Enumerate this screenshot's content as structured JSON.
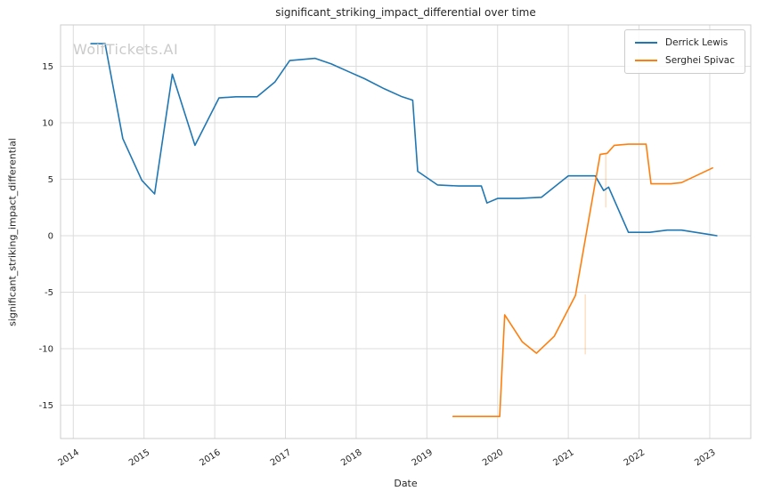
{
  "watermark": "WolfTickets.AI",
  "chart_data": {
    "type": "line",
    "title": "significant_striking_impact_differential over time",
    "xlabel": "Date",
    "ylabel": "significant_striking_impact_differential",
    "grid": true,
    "legend_position": "upper right",
    "xlim": [
      2013.82,
      2023.58
    ],
    "ylim": [
      -17.95,
      18.66
    ],
    "x_ticks": [
      2014,
      2015,
      2016,
      2017,
      2018,
      2019,
      2020,
      2021,
      2022,
      2023
    ],
    "y_ticks": [
      -15,
      -10,
      -5,
      0,
      5,
      10,
      15
    ],
    "colors": {
      "grid": "#dcdcdc",
      "frame": "#cccccc",
      "text": "#262626",
      "watermark": "#cbcbcb"
    },
    "series": [
      {
        "name": "Derrick Lewis",
        "color": "#1f77b4",
        "x": [
          2014.25,
          2014.45,
          2014.7,
          2014.97,
          2015.15,
          2015.4,
          2015.72,
          2016.06,
          2016.3,
          2016.6,
          2016.85,
          2017.06,
          2017.42,
          2017.65,
          2017.9,
          2018.12,
          2018.4,
          2018.65,
          2018.8,
          2018.87,
          2019.15,
          2019.45,
          2019.77,
          2019.85,
          2020.0,
          2020.3,
          2020.62,
          2021.0,
          2021.2,
          2021.38,
          2021.5,
          2021.57,
          2021.85,
          2022.15,
          2022.4,
          2022.6,
          2023.0,
          2023.1
        ],
        "y": [
          17.0,
          17.0,
          8.6,
          4.9,
          3.7,
          14.3,
          8.0,
          12.2,
          12.3,
          12.3,
          13.6,
          15.5,
          15.7,
          15.2,
          14.5,
          13.9,
          13.0,
          12.3,
          12.0,
          5.7,
          4.5,
          4.4,
          4.4,
          2.9,
          3.3,
          3.3,
          3.4,
          5.3,
          5.3,
          5.3,
          4.0,
          4.3,
          0.3,
          0.3,
          0.5,
          0.5,
          0.1,
          0.0
        ]
      },
      {
        "name": "Serghei Spivac",
        "color": "#ff7f0e",
        "x": [
          2019.37,
          2019.7,
          2020.03,
          2020.1,
          2020.35,
          2020.55,
          2020.8,
          2021.1,
          2021.45,
          2021.55,
          2021.65,
          2021.85,
          2022.1,
          2022.17,
          2022.45,
          2022.6,
          2023.04
        ],
        "y": [
          -16.0,
          -16.0,
          -16.0,
          -7.0,
          -9.4,
          -10.4,
          -8.9,
          -5.3,
          7.2,
          7.3,
          8.0,
          8.1,
          8.1,
          4.6,
          4.6,
          4.7,
          6.0
        ]
      }
    ],
    "error_bars": [
      {
        "x": 2021.24,
        "y_from": -10.5,
        "y_to": -5.2,
        "color": "#ff7f0e"
      },
      {
        "x": 2021.53,
        "y_from": 2.5,
        "y_to": 7.3,
        "color": "#ff7f0e"
      }
    ]
  }
}
